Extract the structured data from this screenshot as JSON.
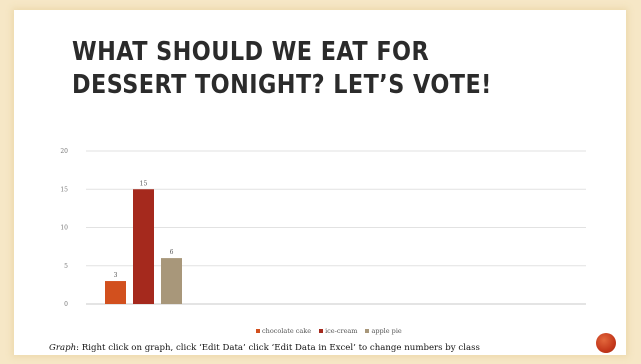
{
  "slide": {
    "title": "What should we eat for dessert tonight? Let’s vote!",
    "caption_prefix": "Graph",
    "caption_rest": ": Right click on graph, click ‘Edit Data’ click ‘Edit Data in Excel’ to change numbers by class"
  },
  "colors": {
    "page_background": "#f6e7c6",
    "accent_dot": "#c93a1c"
  },
  "chart_data": {
    "type": "bar",
    "title": "",
    "xlabel": "",
    "ylabel": "",
    "categories": [
      ""
    ],
    "series": [
      {
        "name": "chocolate cake",
        "values": [
          3
        ],
        "color": "#d2501e"
      },
      {
        "name": "ice-cream",
        "values": [
          15
        ],
        "color": "#a5291d"
      },
      {
        "name": "apple pie",
        "values": [
          6
        ],
        "color": "#a8977a"
      }
    ],
    "ylim": [
      0,
      20
    ],
    "yticks": [
      "0",
      "5",
      "10",
      "15",
      "20"
    ],
    "data_labels": true,
    "grid": true,
    "legend_position": "bottom"
  }
}
